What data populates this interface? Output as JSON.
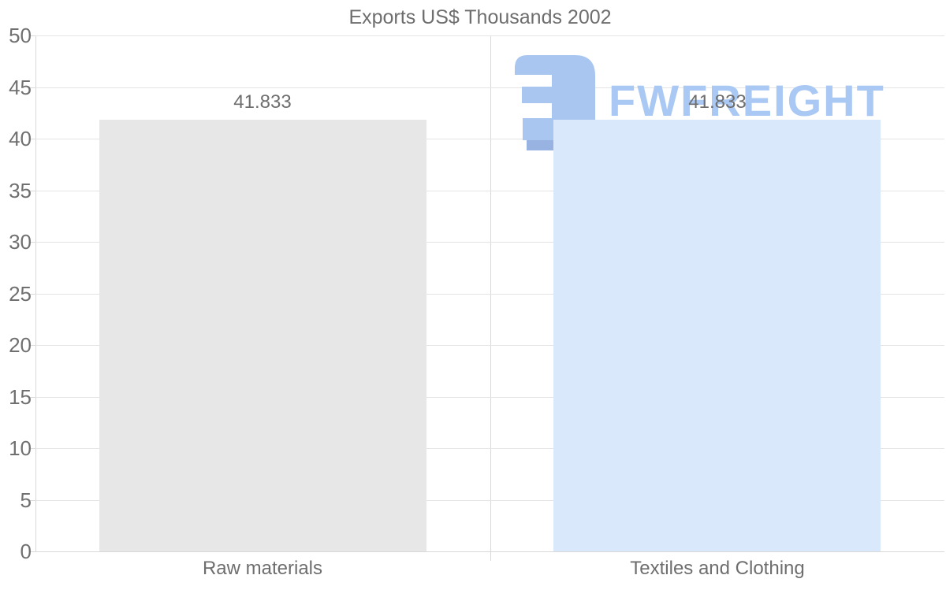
{
  "title": "Exports US$ Thousands 2002",
  "chart_data": {
    "type": "bar",
    "title": "Exports US$ Thousands 2002",
    "categories": [
      "Raw materials",
      "Textiles and Clothing"
    ],
    "values": [
      41.833,
      41.833
    ],
    "value_labels": [
      "41.833",
      "41.833"
    ],
    "bar_colors": [
      "#e7e7e7",
      "#d9e8fa"
    ],
    "ylim": [
      0,
      50
    ],
    "y_tick_step": 5,
    "y_tick_labels": [
      "0",
      "5",
      "10",
      "15",
      "20",
      "25",
      "30",
      "35",
      "40",
      "45",
      "50"
    ],
    "xlabel": "",
    "ylabel": "",
    "grid": true,
    "legend": false
  },
  "watermark": {
    "text": "FWFREIGHT",
    "text_color": "#a9c8f3",
    "logo_color": "#a9c6f1",
    "logo_accent_color": "#98b3e2"
  },
  "colors": {
    "background": "#ffffff",
    "grid_line": "#e4e4e4",
    "axis_line": "#d9d9d9",
    "tick_label_text": "#707070",
    "value_label_text": "#6e6e6e",
    "title_text": "#6e6e6e"
  }
}
